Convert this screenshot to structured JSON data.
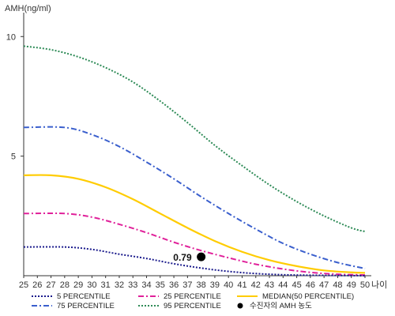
{
  "chart_data": {
    "type": "line",
    "ylabel": "AMH(ng/ml)",
    "xlabel": "나이",
    "xlim": [
      25,
      50
    ],
    "ylim": [
      0,
      11
    ],
    "x_ticks": [
      25,
      26,
      27,
      28,
      29,
      30,
      31,
      32,
      33,
      34,
      35,
      36,
      37,
      38,
      39,
      40,
      41,
      42,
      43,
      44,
      45,
      46,
      47,
      48,
      49,
      50
    ],
    "y_ticks": [
      5,
      10
    ],
    "grid": false,
    "legend_position": "bottom",
    "series": [
      {
        "name": "95 PERCENTILE",
        "color": "#2e8b57",
        "dash": "2,2",
        "points": [
          [
            25,
            9.6
          ],
          [
            27,
            9.45
          ],
          [
            29,
            9.15
          ],
          [
            31,
            8.7
          ],
          [
            33,
            8.1
          ],
          [
            35,
            7.3
          ],
          [
            37,
            6.4
          ],
          [
            39,
            5.45
          ],
          [
            41,
            4.6
          ],
          [
            43,
            3.8
          ],
          [
            45,
            3.1
          ],
          [
            47,
            2.5
          ],
          [
            49,
            2.0
          ],
          [
            50,
            1.85
          ]
        ]
      },
      {
        "name": "75 PERCENTILE",
        "color": "#3a5fcd",
        "dash": "7,3,2,3",
        "points": [
          [
            25,
            6.2
          ],
          [
            28,
            6.2
          ],
          [
            30,
            5.9
          ],
          [
            32,
            5.4
          ],
          [
            34,
            4.75
          ],
          [
            36,
            4.05
          ],
          [
            38,
            3.3
          ],
          [
            40,
            2.6
          ],
          [
            42,
            1.95
          ],
          [
            44,
            1.35
          ],
          [
            46,
            0.9
          ],
          [
            48,
            0.55
          ],
          [
            50,
            0.3
          ]
        ]
      },
      {
        "name": "MEDIAN(50 PERCENTILE)",
        "color": "#ffcc00",
        "dash": "",
        "points": [
          [
            25,
            4.2
          ],
          [
            27,
            4.2
          ],
          [
            29,
            4.05
          ],
          [
            31,
            3.7
          ],
          [
            33,
            3.2
          ],
          [
            35,
            2.6
          ],
          [
            37,
            2.0
          ],
          [
            39,
            1.45
          ],
          [
            41,
            1.0
          ],
          [
            43,
            0.65
          ],
          [
            45,
            0.4
          ],
          [
            47,
            0.22
          ],
          [
            49,
            0.14
          ],
          [
            50,
            0.12
          ]
        ]
      },
      {
        "name": "25 PERCENTILE",
        "color": "#e0219a",
        "dash": "7,3,2,3",
        "points": [
          [
            25,
            2.6
          ],
          [
            28,
            2.6
          ],
          [
            30,
            2.45
          ],
          [
            32,
            2.15
          ],
          [
            34,
            1.8
          ],
          [
            36,
            1.4
          ],
          [
            38,
            1.05
          ],
          [
            40,
            0.75
          ],
          [
            42,
            0.48
          ],
          [
            44,
            0.28
          ],
          [
            46,
            0.14
          ],
          [
            48,
            0.06
          ],
          [
            50,
            0.03
          ]
        ]
      },
      {
        "name": "5 PERCENTILE",
        "color": "#1a1a8c",
        "dash": "2,2",
        "points": [
          [
            25,
            1.2
          ],
          [
            28,
            1.2
          ],
          [
            30,
            1.1
          ],
          [
            32,
            0.9
          ],
          [
            34,
            0.72
          ],
          [
            36,
            0.5
          ],
          [
            38,
            0.32
          ],
          [
            40,
            0.18
          ],
          [
            42,
            0.09
          ],
          [
            44,
            0.04
          ],
          [
            46,
            0.02
          ],
          [
            48,
            0.01
          ],
          [
            50,
            0.0
          ]
        ]
      }
    ],
    "legend": [
      {
        "label": "5 PERCENTILE",
        "color": "#1a1a8c",
        "dash": "2,2",
        "kind": "line"
      },
      {
        "label": "25 PERCENTILE",
        "color": "#e0219a",
        "dash": "7,3,2,3",
        "kind": "line"
      },
      {
        "label": "MEDIAN(50 PERCENTILE)",
        "color": "#ffcc00",
        "dash": "",
        "kind": "line"
      },
      {
        "label": "75 PERCENTILE",
        "color": "#3a5fcd",
        "dash": "7,3,2,3",
        "kind": "line"
      },
      {
        "label": "95 PERCENTILE",
        "color": "#2e8b57",
        "dash": "2,2",
        "kind": "line"
      },
      {
        "label": "수진자의 AMH 농도",
        "color": "#000000",
        "dash": "",
        "kind": "point"
      }
    ],
    "point": {
      "x": 38,
      "y": 0.79,
      "label": "0.79"
    }
  }
}
